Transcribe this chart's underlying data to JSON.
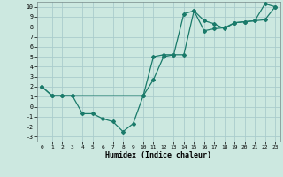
{
  "title": "",
  "xlabel": "Humidex (Indice chaleur)",
  "ylabel": "",
  "bg_color": "#cce8e0",
  "grid_color": "#aacccc",
  "line_color": "#1a7a6a",
  "xlim": [
    -0.5,
    23.5
  ],
  "ylim": [
    -3.5,
    10.5
  ],
  "xticks": [
    0,
    1,
    2,
    3,
    4,
    5,
    6,
    7,
    8,
    9,
    10,
    11,
    12,
    13,
    14,
    15,
    16,
    17,
    18,
    19,
    20,
    21,
    22,
    23
  ],
  "yticks": [
    -3,
    -2,
    -1,
    0,
    1,
    2,
    3,
    4,
    5,
    6,
    7,
    8,
    9,
    10
  ],
  "line1_x": [
    0,
    1,
    2,
    3,
    10,
    11,
    12,
    13,
    14,
    15,
    16,
    17,
    18,
    19,
    20,
    21,
    22,
    23
  ],
  "line1_y": [
    2.0,
    1.1,
    1.1,
    1.1,
    1.1,
    5.0,
    5.2,
    5.2,
    9.3,
    9.6,
    8.6,
    8.3,
    7.8,
    8.4,
    8.5,
    8.6,
    8.7,
    10.0
  ],
  "line2_x": [
    0,
    1,
    2,
    3,
    4,
    5,
    6,
    7,
    8,
    9,
    10,
    11,
    12,
    13,
    14,
    15,
    16,
    17,
    18,
    19,
    20,
    21,
    22,
    23
  ],
  "line2_y": [
    2.0,
    1.1,
    1.1,
    1.1,
    -0.7,
    -0.7,
    -1.2,
    -1.5,
    -2.5,
    -1.7,
    1.1,
    2.7,
    5.0,
    5.2,
    5.2,
    9.6,
    7.6,
    7.8,
    7.9,
    8.4,
    8.5,
    8.6,
    10.3,
    10.0
  ]
}
